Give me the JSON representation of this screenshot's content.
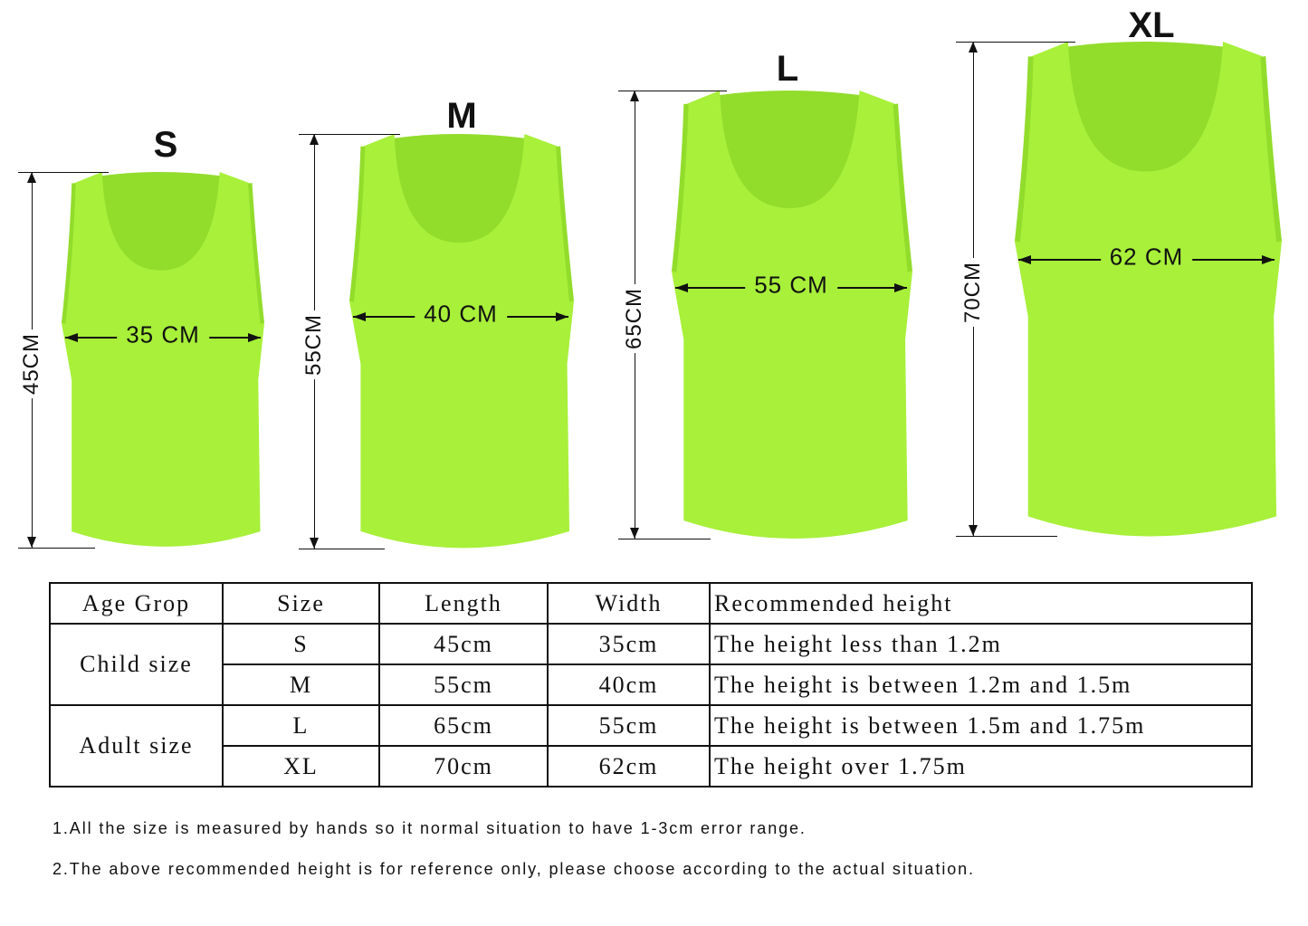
{
  "colors": {
    "vest": "#a8f03a",
    "vest_shade": "#92dc2c",
    "line": "#111111"
  },
  "vests": [
    {
      "size": "S",
      "length_label": "45CM",
      "width_label": "35 CM"
    },
    {
      "size": "M",
      "length_label": "55CM",
      "width_label": "40 CM"
    },
    {
      "size": "L",
      "length_label": "65CM",
      "width_label": "55 CM"
    },
    {
      "size": "XL",
      "length_label": "70CM",
      "width_label": "62 CM"
    }
  ],
  "table": {
    "headers": [
      "Age Grop",
      "Size",
      "Length",
      "Width",
      "Recommended height"
    ],
    "groups": [
      {
        "label": "Child size",
        "rows": [
          {
            "size": "S",
            "length": "45cm",
            "width": "35cm",
            "height": "The height less than 1.2m"
          },
          {
            "size": "M",
            "length": "55cm",
            "width": "40cm",
            "height": "The height is between 1.2m and 1.5m"
          }
        ]
      },
      {
        "label": "Adult size",
        "rows": [
          {
            "size": "L",
            "length": "65cm",
            "width": "55cm",
            "height": "The height is between 1.5m and 1.75m"
          },
          {
            "size": "XL",
            "length": "70cm",
            "width": "62cm",
            "height": "The height over 1.75m"
          }
        ]
      }
    ]
  },
  "notes": [
    "1.All the size is measured by hands so it normal situation to have 1-3cm error range.",
    "2.The above recommended height is for reference only, please choose according to the actual situation."
  ]
}
